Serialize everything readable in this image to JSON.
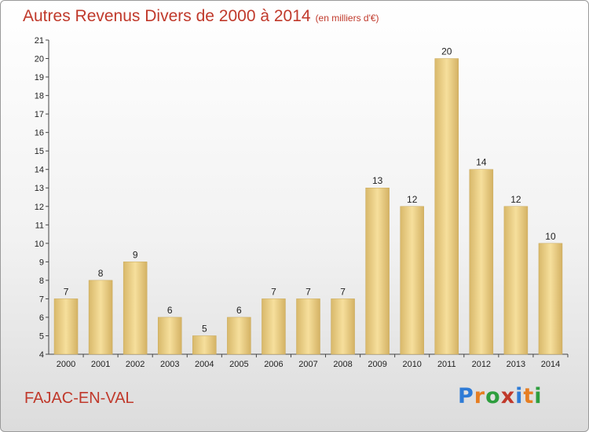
{
  "title": "Autres Revenus Divers de 2000 à 2014",
  "unit_note": "(en milliers d'€)",
  "place": "FAJAC-EN-VAL",
  "logo": {
    "letters": [
      "P",
      "r",
      "o",
      "x",
      "i",
      "t",
      "i"
    ],
    "colors": [
      "#2e7bd6",
      "#e67e22",
      "#2e9e3e",
      "#c0392b",
      "#2e7bd6",
      "#e67e22",
      "#2e9e3e"
    ]
  },
  "chart_data": {
    "type": "bar",
    "title": "Autres Revenus Divers de 2000 à 2014",
    "subtitle": "(en milliers d'€)",
    "categories": [
      "2000",
      "2001",
      "2002",
      "2003",
      "2004",
      "2005",
      "2006",
      "2007",
      "2008",
      "2009",
      "2010",
      "2011",
      "2012",
      "2013",
      "2014"
    ],
    "values": [
      7,
      8,
      9,
      6,
      5,
      6,
      7,
      7,
      7,
      13,
      12,
      20,
      14,
      12,
      10
    ],
    "ylim": [
      4,
      21
    ],
    "yticks": [
      4,
      5,
      6,
      7,
      8,
      9,
      10,
      11,
      12,
      13,
      14,
      15,
      16,
      17,
      18,
      19,
      20,
      21
    ],
    "grid": false,
    "bar_color": "#e8cf86"
  }
}
